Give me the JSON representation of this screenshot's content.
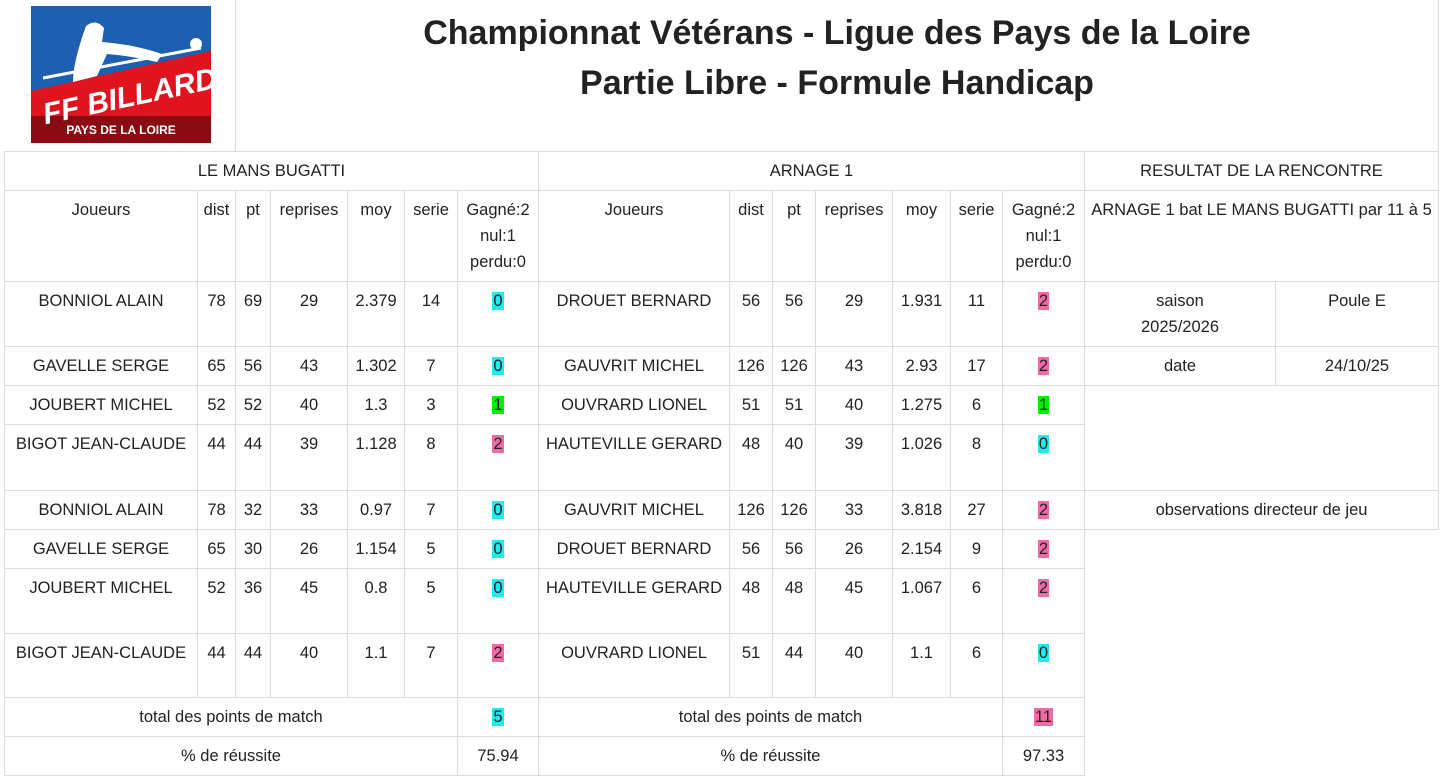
{
  "logo": {
    "line1": "FF BILLARD",
    "line2": "PAYS DE LA LOIRE"
  },
  "title": {
    "line1": "Championnat Vétérans - Ligue des Pays de la Loire",
    "line2": "Partie Libre - Formule Handicap"
  },
  "colors": {
    "win": "#f06aa8",
    "draw": "#00f000",
    "loss": "#22e8f0"
  },
  "teams": {
    "home": "LE MANS BUGATTI",
    "away": "ARNAGE 1"
  },
  "columns": {
    "players": "Joueurs",
    "dist": "dist",
    "pt": "pt",
    "reprises": "reprises",
    "moy": "moy",
    "serie": "serie",
    "result1": "Gagné:2",
    "result2": "nul:1",
    "result3": "perdu:0"
  },
  "rows": [
    {
      "h": [
        "BONNIOL ALAIN",
        "78",
        "69",
        "29",
        "2.379",
        "14",
        "0"
      ],
      "a": [
        "DROUET BERNARD",
        "56",
        "56",
        "29",
        "1.931",
        "11",
        "2"
      ]
    },
    {
      "h": [
        "GAVELLE SERGE",
        "65",
        "56",
        "43",
        "1.302",
        "7",
        "0"
      ],
      "a": [
        "GAUVRIT MICHEL",
        "126",
        "126",
        "43",
        "2.93",
        "17",
        "2"
      ]
    },
    {
      "h": [
        "JOUBERT MICHEL",
        "52",
        "52",
        "40",
        "1.3",
        "3",
        "1"
      ],
      "a": [
        "OUVRARD LIONEL",
        "51",
        "51",
        "40",
        "1.275",
        "6",
        "1"
      ]
    },
    {
      "h": [
        "BIGOT JEAN-CLAUDE",
        "44",
        "44",
        "39",
        "1.128",
        "8",
        "2"
      ],
      "a": [
        "HAUTEVILLE GERARD",
        "48",
        "40",
        "39",
        "1.026",
        "8",
        "0"
      ]
    },
    {
      "h": [
        "BONNIOL ALAIN",
        "78",
        "32",
        "33",
        "0.97",
        "7",
        "0"
      ],
      "a": [
        "GAUVRIT MICHEL",
        "126",
        "126",
        "33",
        "3.818",
        "27",
        "2"
      ]
    },
    {
      "h": [
        "GAVELLE SERGE",
        "65",
        "30",
        "26",
        "1.154",
        "5",
        "0"
      ],
      "a": [
        "DROUET BERNARD",
        "56",
        "56",
        "26",
        "2.154",
        "9",
        "2"
      ]
    },
    {
      "h": [
        "JOUBERT MICHEL",
        "52",
        "36",
        "45",
        "0.8",
        "5",
        "0"
      ],
      "a": [
        "HAUTEVILLE GERARD",
        "48",
        "48",
        "45",
        "1.067",
        "6",
        "2"
      ]
    },
    {
      "h": [
        "BIGOT JEAN-CLAUDE",
        "44",
        "44",
        "40",
        "1.1",
        "7",
        "2"
      ],
      "a": [
        "OUVRARD LIONEL",
        "51",
        "44",
        "40",
        "1.1",
        "6",
        "0"
      ]
    }
  ],
  "totals": {
    "label": "total des points de match",
    "home": "5",
    "away": "11"
  },
  "success": {
    "label": "% de réussite",
    "home": "75.94",
    "away": "97.33"
  },
  "result": {
    "heading": "RESULTAT DE LA RENCONTRE",
    "summary": "ARNAGE 1 bat LE MANS BUGATTI par 11 à 5",
    "season_label": "saison",
    "season": "2025/2026",
    "pool": "Poule E",
    "date_label": "date",
    "date": "24/10/25",
    "observations": "observations directeur de jeu"
  }
}
